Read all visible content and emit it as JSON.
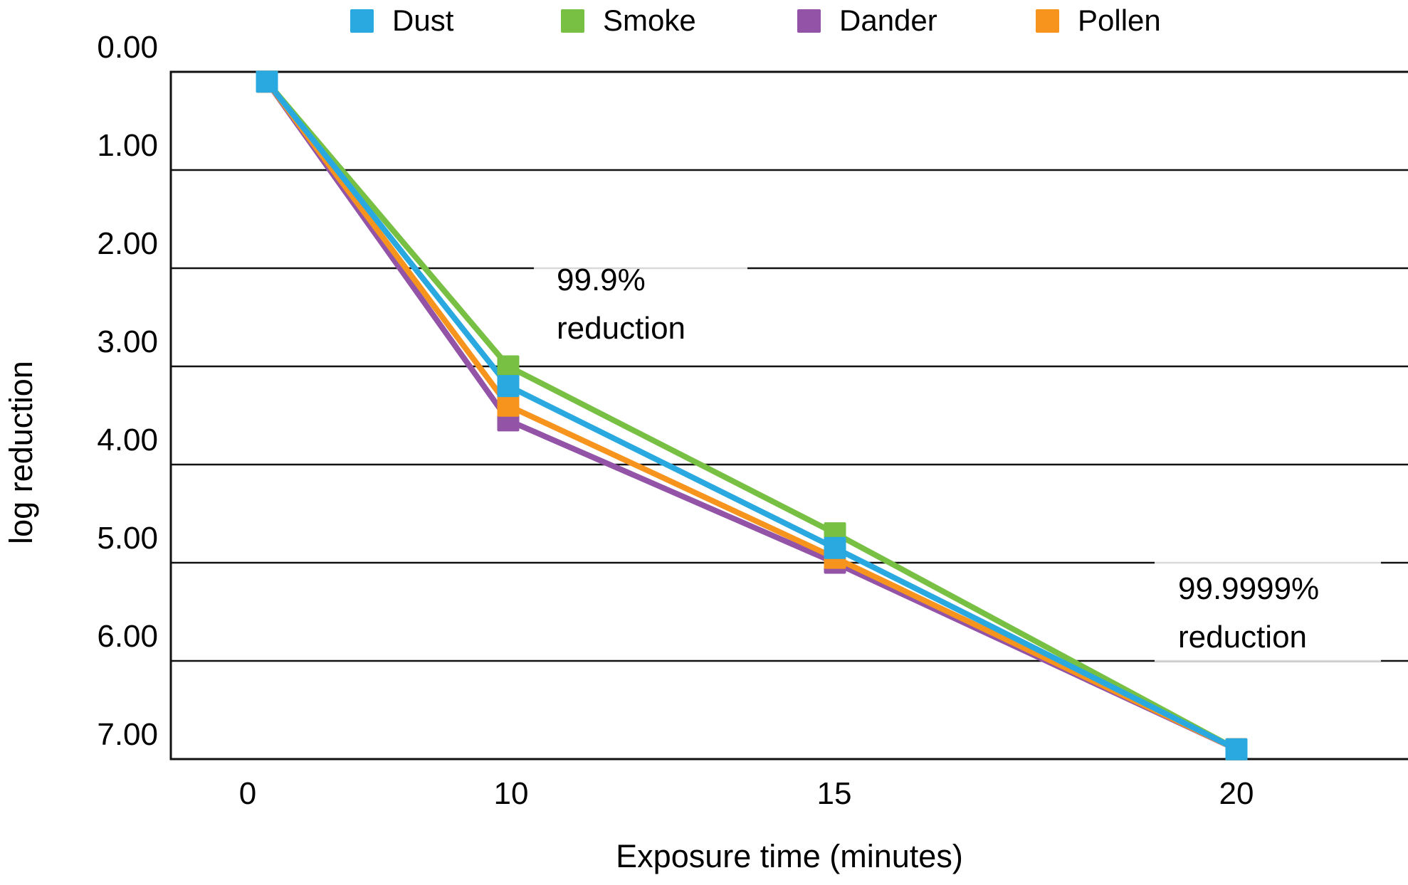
{
  "chart_data": {
    "type": "line",
    "title": "",
    "xlabel": "Exposure time (minutes)",
    "ylabel": "log reduction",
    "x": [
      0,
      10,
      15,
      20
    ],
    "x_tick_labels": [
      "0",
      "10",
      "15",
      "20"
    ],
    "y_tick_labels": [
      "0.00",
      "1.00",
      "2.00",
      "3.00",
      "4.00",
      "5.00",
      "6.00",
      "7.00"
    ],
    "y_range": [
      0,
      7
    ],
    "y_axis_inverted": true,
    "grid": "horizontal",
    "legend_position": "top",
    "marker": "square",
    "series": [
      {
        "name": "Dust",
        "color": "#29A9E0",
        "values": [
          0.1,
          3.2,
          4.85,
          6.9
        ]
      },
      {
        "name": "Smoke",
        "color": "#77C043",
        "values": [
          0.1,
          3.0,
          4.7,
          6.9
        ]
      },
      {
        "name": "Dander",
        "color": "#9353A7",
        "values": [
          0.1,
          3.55,
          5.0,
          6.9
        ]
      },
      {
        "name": "Pollen",
        "color": "#F7941E",
        "values": [
          0.1,
          3.4,
          4.95,
          6.9
        ]
      }
    ],
    "annotations": {
      "a1": {
        "line1": "99.9%",
        "line2": "reduction",
        "near": "10 minutes"
      },
      "a2": {
        "line1": "99.9999%",
        "line2": "reduction",
        "near": "20 minutes"
      }
    }
  }
}
